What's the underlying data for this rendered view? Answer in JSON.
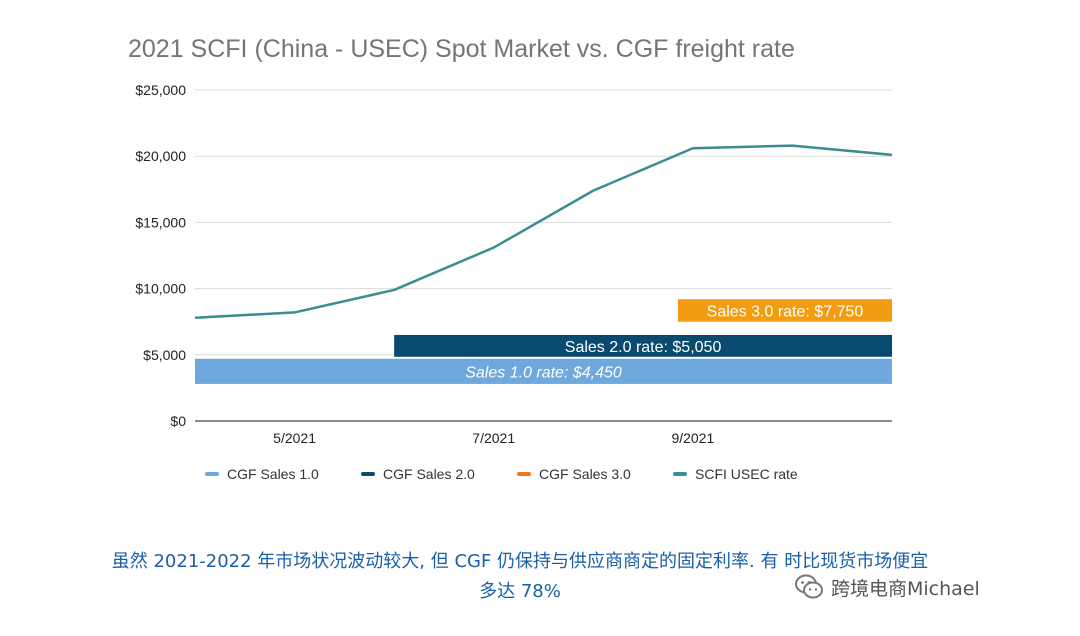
{
  "chart_data": {
    "type": "line",
    "title": "2021 SCFI (China - USEC) Spot Market vs. CGF freight rate",
    "xlabel": "",
    "ylabel": "",
    "ylim": [
      0,
      25000
    ],
    "y_ticks": [
      0,
      5000,
      10000,
      15000,
      20000,
      25000
    ],
    "y_tick_labels": [
      "$0",
      "$5,000",
      "$10,000",
      "$15,000",
      "$20,000",
      "$25,000"
    ],
    "x_tick_labels": [
      {
        "label": "5/2021",
        "at": 1
      },
      {
        "label": "7/2021",
        "at": 3
      },
      {
        "label": "9/2021",
        "at": 5
      }
    ],
    "x_range": [
      0,
      7
    ],
    "grid": true,
    "legend_position": "bottom",
    "series": [
      {
        "name": "SCFI USEC rate",
        "color": "#3a8d92",
        "x": [
          0,
          1,
          2,
          3,
          4,
          5,
          6,
          7
        ],
        "values": [
          7800,
          8200,
          9900,
          13100,
          17400,
          20600,
          20800,
          20100
        ]
      }
    ],
    "bands": [
      {
        "name": "CGF Sales 1.0",
        "label": "Sales 1.0 rate: $4,450",
        "color": "#6fa8dc",
        "italic": true,
        "x_start": 0,
        "x_end": 7,
        "y_low": 2800,
        "y_high": 4700
      },
      {
        "name": "CGF Sales 2.0",
        "label": "Sales 2.0 rate: $5,050",
        "color": "#0b4a6f",
        "italic": false,
        "x_start": 2,
        "x_end": 7,
        "y_low": 4850,
        "y_high": 6500
      },
      {
        "name": "CGF Sales 3.0",
        "label": "Sales 3.0 rate: $7,750",
        "color": "#f39c12",
        "italic": false,
        "x_start": 4.85,
        "x_end": 7,
        "y_low": 7500,
        "y_high": 9200
      }
    ],
    "legend": [
      {
        "label": "CGF Sales 1.0",
        "color": "#6fa8dc"
      },
      {
        "label": "CGF Sales 2.0",
        "color": "#0b4a6f"
      },
      {
        "label": "CGF Sales 3.0",
        "color": "#f4722b"
      },
      {
        "label": "SCFI USEC rate",
        "color": "#3a8d92"
      }
    ]
  },
  "caption": {
    "line1": "虽然 2021-2022 年市场状况波动较大, 但 CGF 仍保持与供应商商定的固定利率. 有 时比现货市场便宜",
    "line2": "多达 78%"
  },
  "watermark": {
    "text": "跨境电商Michael",
    "icon": "wechat-icon"
  }
}
